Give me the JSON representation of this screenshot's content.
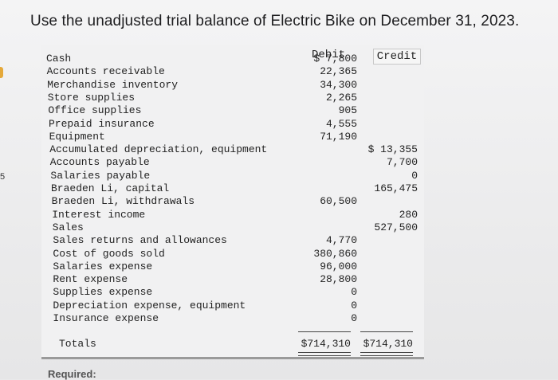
{
  "title": "Use the unadjusted trial balance of Electric Bike on December 31, 2023.",
  "headers": {
    "debit": "Debit",
    "credit": "Credit"
  },
  "rows": [
    {
      "account": "Cash",
      "debit": "$  7,800",
      "credit": ""
    },
    {
      "account": "Accounts receivable",
      "debit": "22,365",
      "credit": ""
    },
    {
      "account": "Merchandise inventory",
      "debit": "34,300",
      "credit": ""
    },
    {
      "account": "Store supplies",
      "debit": "2,265",
      "credit": ""
    },
    {
      "account": "Office supplies",
      "debit": "905",
      "credit": ""
    },
    {
      "account": "Prepaid insurance",
      "debit": "4,555",
      "credit": ""
    },
    {
      "account": "Equipment",
      "debit": "71,190",
      "credit": ""
    },
    {
      "account": "Accumulated depreciation, equipment",
      "debit": "",
      "credit": "$ 13,355"
    },
    {
      "account": "Accounts payable",
      "debit": "",
      "credit": "7,700"
    },
    {
      "account": "Salaries payable",
      "debit": "",
      "credit": "0"
    },
    {
      "account": "Braeden Li, capital",
      "debit": "",
      "credit": "165,475"
    },
    {
      "account": "Braeden Li, withdrawals",
      "debit": "60,500",
      "credit": ""
    },
    {
      "account": "Interest income",
      "debit": "",
      "credit": "280"
    },
    {
      "account": "Sales",
      "debit": "",
      "credit": "527,500"
    },
    {
      "account": "Sales returns and allowances",
      "debit": "4,770",
      "credit": ""
    },
    {
      "account": "Cost of goods sold",
      "debit": "380,860",
      "credit": ""
    },
    {
      "account": "Salaries expense",
      "debit": "96,000",
      "credit": ""
    },
    {
      "account": "Rent expense",
      "debit": "28,800",
      "credit": ""
    },
    {
      "account": "Supplies expense",
      "debit": "0",
      "credit": ""
    },
    {
      "account": "Depreciation expense, equipment",
      "debit": "0",
      "credit": ""
    },
    {
      "account": "Insurance expense",
      "debit": "0",
      "credit": ""
    }
  ],
  "totals": {
    "label": "Totals",
    "debit": "$714,310",
    "credit": "$714,310"
  },
  "footer": {
    "required_label": "Required:"
  },
  "margin_text": "5"
}
